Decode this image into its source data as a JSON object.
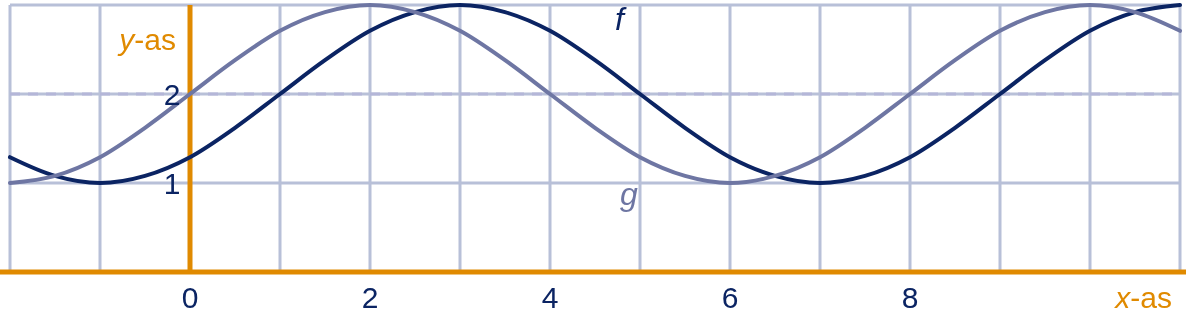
{
  "chart_data": {
    "type": "line",
    "xlabel": "x-as",
    "ylabel": "y-as",
    "x": [
      -2,
      -1.5,
      -1,
      -0.5,
      0,
      0.5,
      1,
      1.5,
      2,
      2.5,
      3,
      3.5,
      4,
      4.5,
      5,
      5.5,
      6,
      6.5,
      7,
      7.5,
      8,
      8.5,
      9,
      9.5,
      10,
      10.5,
      11
    ],
    "series": [
      {
        "name": "f",
        "color": "#0b2463",
        "values": [
          1.29,
          1.08,
          1,
          1.08,
          1.29,
          1.62,
          2,
          2.38,
          2.71,
          2.92,
          3,
          2.92,
          2.71,
          2.38,
          2,
          1.62,
          1.29,
          1.08,
          1,
          1.08,
          1.29,
          1.62,
          2,
          2.38,
          2.71,
          2.92,
          3
        ]
      },
      {
        "name": "g",
        "color": "#6e76a3",
        "values": [
          1,
          1.08,
          1.29,
          1.62,
          2,
          2.38,
          2.71,
          2.92,
          3,
          2.92,
          2.71,
          2.38,
          2,
          1.62,
          1.29,
          1.08,
          1,
          1.08,
          1.29,
          1.62,
          2,
          2.38,
          2.71,
          2.92,
          3,
          2.92,
          2.71
        ]
      }
    ],
    "xlim": [
      -2,
      11
    ],
    "ylim": [
      0,
      3
    ],
    "xticks": [
      {
        "value": -2,
        "label": null
      },
      {
        "value": -1,
        "label": null
      },
      0,
      {
        "value": 1,
        "label": null
      },
      2,
      {
        "value": 3,
        "label": null
      },
      4,
      {
        "value": 5,
        "label": null
      },
      6,
      {
        "value": 7,
        "label": null
      },
      8,
      {
        "value": 9,
        "label": null
      },
      {
        "value": 10,
        "label": null
      },
      {
        "value": 11,
        "label": null
      }
    ],
    "yticks": [
      {
        "value": 0,
        "label": null
      },
      1,
      2,
      {
        "value": 3,
        "label": null
      }
    ],
    "grid": true,
    "marker": "none",
    "line_style": "solid",
    "ref_lines": [
      {
        "axis": "y",
        "value": 2,
        "label": null,
        "color": "#b4b6d8",
        "line_style": "dashed"
      }
    ]
  }
}
